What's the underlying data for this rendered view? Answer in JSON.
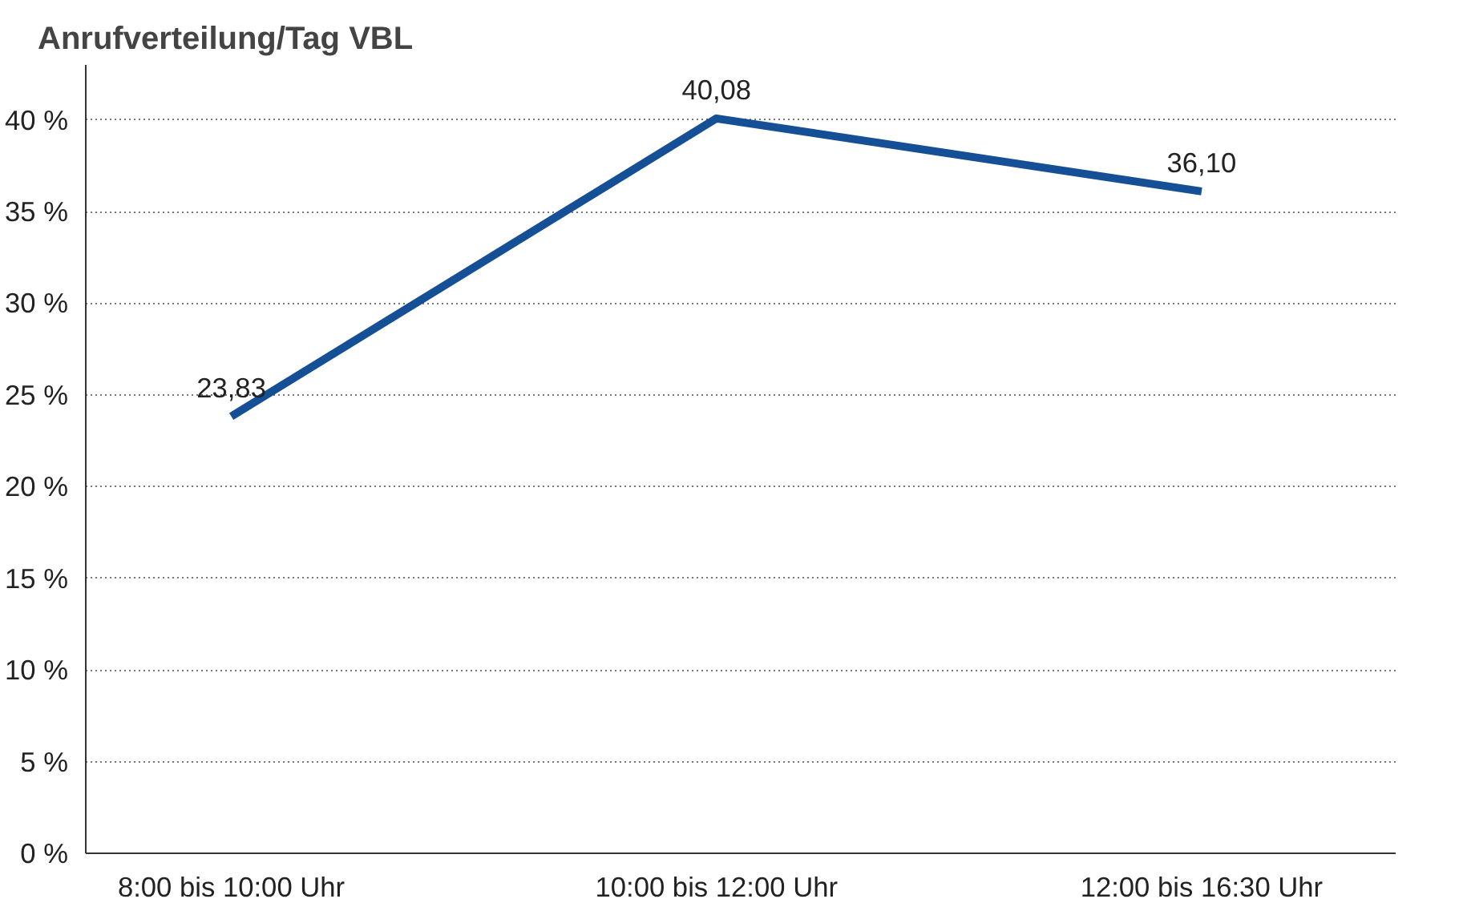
{
  "chart_data": {
    "type": "line",
    "title": "Anrufverteilung/Tag VBL",
    "categories": [
      "8:00 bis 10:00 Uhr",
      "10:00 bis 12:00 Uhr",
      "12:00 bis 16:30 Uhr"
    ],
    "series": [
      {
        "color": "#154f95",
        "values": [
          23.83,
          40.08,
          36.1
        ],
        "value_labels": [
          "23,83",
          "40,08",
          "36,10"
        ]
      }
    ],
    "ylim": [
      0,
      43
    ],
    "yticks": [
      {
        "value": 0,
        "label": "0 %"
      },
      {
        "value": 5,
        "label": "5 %"
      },
      {
        "value": 10,
        "label": "10 %"
      },
      {
        "value": 15,
        "label": "15 %"
      },
      {
        "value": 20,
        "label": "20 %"
      },
      {
        "value": 25,
        "label": "25 %"
      },
      {
        "value": 30,
        "label": "30 %"
      },
      {
        "value": 35,
        "label": "35 %"
      },
      {
        "value": 40,
        "label": "40 %"
      }
    ],
    "grid": "y",
    "marker": "none",
    "line_style": "solid"
  }
}
